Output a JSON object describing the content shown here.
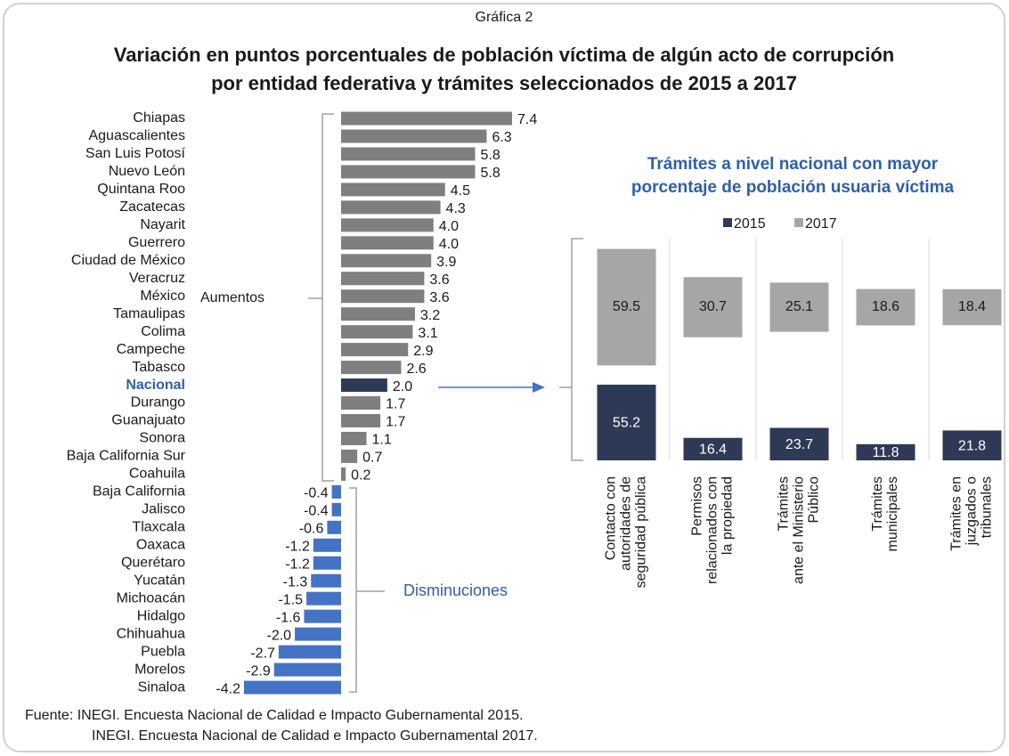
{
  "chart_data": [
    {
      "type": "hbar",
      "label": "Gráfica 2",
      "title": [
        "Variación en puntos porcentuales de población víctima de algún acto de corrupción",
        "por entidad federativa y trámites seleccionados de 2015 a 2017"
      ],
      "categories": [
        "Chiapas",
        "Aguascalientes",
        "San Luis Potosí",
        "Nuevo León",
        "Quintana Roo",
        "Zacatecas",
        "Nayarit",
        "Guerrero",
        "Ciudad de México",
        "Veracruz",
        "México",
        "Tamaulipas",
        "Colima",
        "Campeche",
        "Tabasco",
        "Nacional",
        "Durango",
        "Guanajuato",
        "Sonora",
        "Baja California Sur",
        "Coahuila",
        "Baja California",
        "Jalisco",
        "Tlaxcala",
        "Oaxaca",
        "Querétaro",
        "Yucatán",
        "Michoacán",
        "Hidalgo",
        "Chihuahua",
        "Puebla",
        "Morelos",
        "Sinaloa"
      ],
      "values": [
        7.4,
        6.3,
        5.8,
        5.8,
        4.5,
        4.3,
        4,
        4,
        3.9,
        3.6,
        3.6,
        3.2,
        3.1,
        2.9,
        2.6,
        2,
        1.7,
        1.7,
        1.1,
        0.7,
        0.2,
        -0.4,
        -0.4,
        -0.6,
        -1.2,
        -1.2,
        -1.3,
        -1.5,
        -1.6,
        -2,
        -2.7,
        -2.9,
        -4.2
      ],
      "value_labels": [
        "7.4",
        "6.3",
        "5.8",
        "5.8",
        "4.5",
        "4.3",
        "4.0",
        "4.0",
        "3.9",
        "3.6",
        "3.6",
        "3.2",
        "3.1",
        "2.9",
        "2.6",
        "2.0",
        "1.7",
        "1.7",
        "1.1",
        "0.7",
        "0.2",
        "-0.4",
        "-0.4",
        "-0.6",
        "-1.2",
        "-1.2",
        "-1.3",
        "-1.5",
        "-1.6",
        "-2.0",
        "-2.7",
        "-2.9",
        "-4.2"
      ],
      "colors": [
        "#7f7f7f",
        "#7f7f7f",
        "#7f7f7f",
        "#7f7f7f",
        "#7f7f7f",
        "#7f7f7f",
        "#7f7f7f",
        "#7f7f7f",
        "#7f7f7f",
        "#7f7f7f",
        "#7f7f7f",
        "#7f7f7f",
        "#7f7f7f",
        "#7f7f7f",
        "#7f7f7f",
        "#2e3a55",
        "#7f7f7f",
        "#7f7f7f",
        "#7f7f7f",
        "#7f7f7f",
        "#7f7f7f",
        "#4472c4",
        "#4472c4",
        "#4472c4",
        "#4472c4",
        "#4472c4",
        "#4472c4",
        "#4472c4",
        "#4472c4",
        "#4472c4",
        "#4472c4",
        "#4472c4",
        "#4472c4"
      ],
      "annotations": [
        "Aumentos",
        "Disminuciones"
      ],
      "source": [
        "Fuente: INEGI. Encuesta Nacional de Calidad e Impacto Gubernamental 2015.",
        "INEGI. Encuesta Nacional de Calidad e Impacto Gubernamental 2017."
      ]
    },
    {
      "type": "panel_bar",
      "title": [
        "Trámites a nivel nacional con mayor",
        "porcentaje de población usuaria víctima"
      ],
      "categories": [
        [
          "Contacto con",
          "autoridades de",
          "seguridad pública"
        ],
        [
          "Permisos",
          "relacionados con",
          "la propiedad"
        ],
        [
          "Trámites",
          "ante el Ministerio",
          "Público"
        ],
        [
          "Trámites",
          "municipales"
        ],
        [
          "Trámites en",
          "juzgados o",
          "tribunales"
        ]
      ],
      "series": [
        {
          "name": "2015",
          "color": "#2e3a55",
          "values": [
            55.2,
            16.4,
            23.7,
            11.8,
            21.8
          ]
        },
        {
          "name": "2017",
          "color": "#a6a6a6",
          "values": [
            59.5,
            30.7,
            25.1,
            18.6,
            18.4
          ]
        }
      ]
    }
  ]
}
